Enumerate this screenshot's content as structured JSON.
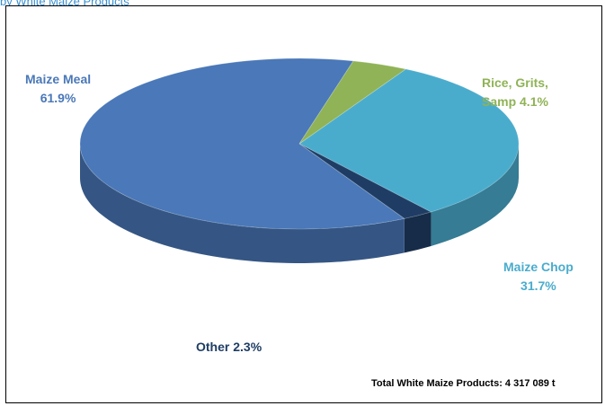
{
  "header": {
    "title_fragment": "by White Maize Products"
  },
  "chart_data": {
    "type": "pie",
    "style": "3d",
    "slices": [
      {
        "label_line1": "Maize Meal",
        "label_line2": "61.9%",
        "name": "Maize Meal",
        "value": 61.9,
        "color": "#4a78b8"
      },
      {
        "label_line1": "Rice, Grits,",
        "label_line2": "Samp 4.1%",
        "name": "Rice, Grits, Samp",
        "value": 4.1,
        "color": "#8fb356"
      },
      {
        "label_line1": "Maize Chop",
        "label_line2": "31.7%",
        "name": "Maize Chop",
        "value": 31.7,
        "color": "#4aaccd"
      },
      {
        "label_line1": "Other 2.3%",
        "label_line2": "",
        "name": "Other",
        "value": 2.3,
        "color": "#1f3d64"
      }
    ],
    "total_label": "Total White Maize Products: 4 317 089 t"
  }
}
